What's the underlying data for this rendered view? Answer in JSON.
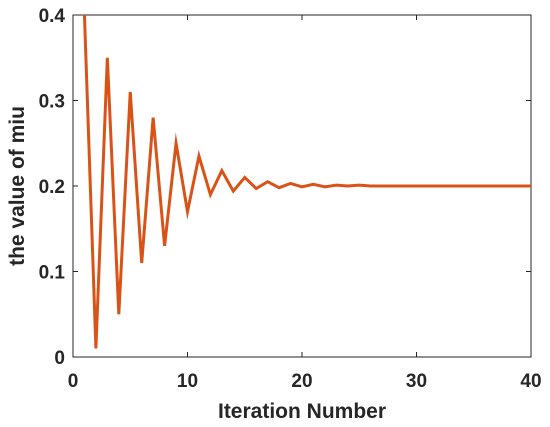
{
  "chart_data": {
    "type": "line",
    "title": "",
    "xlabel": "Iteration Number",
    "ylabel": "the value of miu",
    "xlim": [
      0,
      40
    ],
    "ylim": [
      0,
      0.4
    ],
    "xticks": [
      0,
      10,
      20,
      30,
      40
    ],
    "yticks": [
      0,
      0.1,
      0.2,
      0.3,
      0.4
    ],
    "ytick_labels": [
      "0",
      "0.1",
      "0.2",
      "0.3",
      "0.4"
    ],
    "grid": false,
    "series": [
      {
        "color": "#D95319",
        "x": [
          1,
          2,
          3,
          4,
          5,
          6,
          7,
          8,
          9,
          10,
          11,
          12,
          13,
          14,
          15,
          16,
          17,
          18,
          19,
          20,
          21,
          22,
          23,
          24,
          25,
          26,
          27,
          28,
          29,
          30,
          31,
          32,
          33,
          34,
          35,
          36,
          37,
          38,
          39,
          40
        ],
        "y": [
          0.4,
          0.01,
          0.35,
          0.05,
          0.31,
          0.11,
          0.28,
          0.13,
          0.25,
          0.17,
          0.235,
          0.19,
          0.218,
          0.194,
          0.21,
          0.197,
          0.205,
          0.198,
          0.203,
          0.199,
          0.202,
          0.199,
          0.201,
          0.2,
          0.201,
          0.2,
          0.2,
          0.2,
          0.2,
          0.2,
          0.2,
          0.2,
          0.2,
          0.2,
          0.2,
          0.2,
          0.2,
          0.2,
          0.2,
          0.2
        ]
      }
    ]
  }
}
